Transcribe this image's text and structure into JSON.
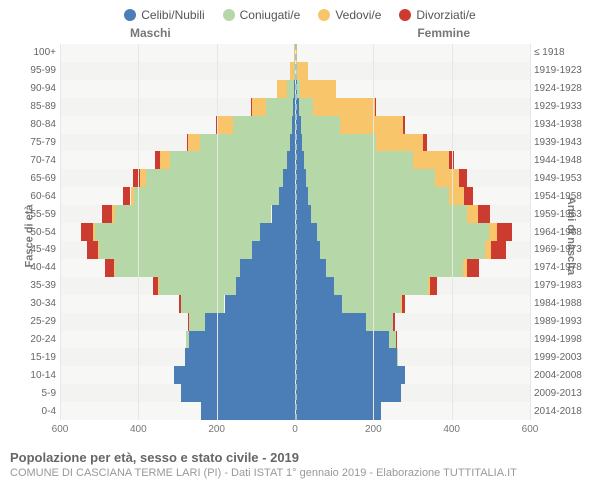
{
  "legend": {
    "items": [
      {
        "label": "Celibi/Nubili",
        "color": "#4b7db6"
      },
      {
        "label": "Coniugati/e",
        "color": "#b6d7a8"
      },
      {
        "label": "Vedovi/e",
        "color": "#f8c56a"
      },
      {
        "label": "Divorziati/e",
        "color": "#cc3b2f"
      }
    ]
  },
  "labels": {
    "male": "Maschi",
    "female": "Femmine",
    "left_axis": "Fasce di età",
    "right_axis": "Anni di nascita"
  },
  "xaxis": {
    "min": -600,
    "max": 600,
    "ticks": [
      {
        "v": -600,
        "l": "600"
      },
      {
        "v": -400,
        "l": "400"
      },
      {
        "v": -200,
        "l": "200"
      },
      {
        "v": 0,
        "l": "0"
      },
      {
        "v": 200,
        "l": "200"
      },
      {
        "v": 400,
        "l": "400"
      },
      {
        "v": 600,
        "l": "600"
      }
    ]
  },
  "colors": {
    "celibi": "#4b7db6",
    "coniugati": "#b6d7a8",
    "vedovi": "#f8c56a",
    "divorziati": "#cc3b2f",
    "plot_bg": "#f7f7f5",
    "grid": "#e6e6e3",
    "center": "#a7c4c4"
  },
  "rows": [
    {
      "age": "100+",
      "year": "≤ 1918",
      "m": {
        "cel": 0,
        "con": 0,
        "ved": 2,
        "div": 0
      },
      "f": {
        "cel": 0,
        "con": 0,
        "ved": 5,
        "div": 0
      }
    },
    {
      "age": "95-99",
      "year": "1919-1923",
      "m": {
        "cel": 0,
        "con": 2,
        "ved": 12,
        "div": 0
      },
      "f": {
        "cel": 2,
        "con": 2,
        "ved": 28,
        "div": 0
      }
    },
    {
      "age": "90-94",
      "year": "1924-1928",
      "m": {
        "cel": 2,
        "con": 18,
        "ved": 25,
        "div": 0
      },
      "f": {
        "cel": 6,
        "con": 8,
        "ved": 90,
        "div": 0
      }
    },
    {
      "age": "85-89",
      "year": "1929-1933",
      "m": {
        "cel": 5,
        "con": 70,
        "ved": 35,
        "div": 2
      },
      "f": {
        "cel": 10,
        "con": 35,
        "ved": 160,
        "div": 3
      }
    },
    {
      "age": "80-84",
      "year": "1934-1938",
      "m": {
        "cel": 8,
        "con": 150,
        "ved": 40,
        "div": 3
      },
      "f": {
        "cel": 15,
        "con": 100,
        "ved": 160,
        "div": 5
      }
    },
    {
      "age": "75-79",
      "year": "1939-1943",
      "m": {
        "cel": 12,
        "con": 230,
        "ved": 30,
        "div": 5
      },
      "f": {
        "cel": 18,
        "con": 190,
        "ved": 120,
        "div": 8
      }
    },
    {
      "age": "70-74",
      "year": "1944-1948",
      "m": {
        "cel": 20,
        "con": 300,
        "ved": 25,
        "div": 12
      },
      "f": {
        "cel": 22,
        "con": 280,
        "ved": 90,
        "div": 15
      }
    },
    {
      "age": "65-69",
      "year": "1949-1953",
      "m": {
        "cel": 30,
        "con": 350,
        "ved": 15,
        "div": 18
      },
      "f": {
        "cel": 28,
        "con": 330,
        "ved": 60,
        "div": 20
      }
    },
    {
      "age": "60-64",
      "year": "1954-1958",
      "m": {
        "cel": 40,
        "con": 370,
        "ved": 10,
        "div": 20
      },
      "f": {
        "cel": 32,
        "con": 360,
        "ved": 40,
        "div": 22
      }
    },
    {
      "age": "55-59",
      "year": "1959-1963",
      "m": {
        "cel": 60,
        "con": 400,
        "ved": 8,
        "div": 25
      },
      "f": {
        "cel": 40,
        "con": 400,
        "ved": 28,
        "div": 30
      }
    },
    {
      "age": "50-54",
      "year": "1964-1968",
      "m": {
        "cel": 90,
        "con": 420,
        "ved": 6,
        "div": 30
      },
      "f": {
        "cel": 55,
        "con": 440,
        "ved": 22,
        "div": 38
      }
    },
    {
      "age": "45-49",
      "year": "1969-1973",
      "m": {
        "cel": 110,
        "con": 390,
        "ved": 4,
        "div": 28
      },
      "f": {
        "cel": 65,
        "con": 420,
        "ved": 15,
        "div": 40
      }
    },
    {
      "age": "40-44",
      "year": "1974-1978",
      "m": {
        "cel": 140,
        "con": 320,
        "ved": 2,
        "div": 22
      },
      "f": {
        "cel": 80,
        "con": 350,
        "ved": 10,
        "div": 30
      }
    },
    {
      "age": "35-39",
      "year": "1979-1983",
      "m": {
        "cel": 150,
        "con": 200,
        "ved": 1,
        "div": 12
      },
      "f": {
        "cel": 100,
        "con": 240,
        "ved": 5,
        "div": 18
      }
    },
    {
      "age": "30-34",
      "year": "1984-1988",
      "m": {
        "cel": 180,
        "con": 110,
        "ved": 0,
        "div": 6
      },
      "f": {
        "cel": 120,
        "con": 150,
        "ved": 2,
        "div": 10
      }
    },
    {
      "age": "25-29",
      "year": "1989-1993",
      "m": {
        "cel": 230,
        "con": 40,
        "ved": 0,
        "div": 2
      },
      "f": {
        "cel": 180,
        "con": 70,
        "ved": 1,
        "div": 4
      }
    },
    {
      "age": "20-24",
      "year": "1994-1998",
      "m": {
        "cel": 270,
        "con": 8,
        "ved": 0,
        "div": 0
      },
      "f": {
        "cel": 240,
        "con": 18,
        "ved": 0,
        "div": 1
      }
    },
    {
      "age": "15-19",
      "year": "1999-2003",
      "m": {
        "cel": 280,
        "con": 0,
        "ved": 0,
        "div": 0
      },
      "f": {
        "cel": 260,
        "con": 2,
        "ved": 0,
        "div": 0
      }
    },
    {
      "age": "10-14",
      "year": "2004-2008",
      "m": {
        "cel": 310,
        "con": 0,
        "ved": 0,
        "div": 0
      },
      "f": {
        "cel": 280,
        "con": 0,
        "ved": 0,
        "div": 0
      }
    },
    {
      "age": "5-9",
      "year": "2009-2013",
      "m": {
        "cel": 290,
        "con": 0,
        "ved": 0,
        "div": 0
      },
      "f": {
        "cel": 270,
        "con": 0,
        "ved": 0,
        "div": 0
      }
    },
    {
      "age": "0-4",
      "year": "2014-2018",
      "m": {
        "cel": 240,
        "con": 0,
        "ved": 0,
        "div": 0
      },
      "f": {
        "cel": 220,
        "con": 0,
        "ved": 0,
        "div": 0
      }
    }
  ],
  "footer": {
    "title": "Popolazione per età, sesso e stato civile - 2019",
    "subtitle": "COMUNE DI CASCIANA TERME LARI (PI) - Dati ISTAT 1° gennaio 2019 - Elaborazione TUTTITALIA.IT"
  }
}
